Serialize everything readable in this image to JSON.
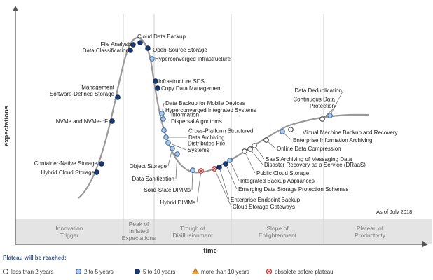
{
  "chart_data": {
    "type": "hype-cycle",
    "ylabel": "expectations",
    "xlabel": "time",
    "as_of": "As of July 2018",
    "phases": [
      "Innovation Trigger",
      "Peak of Inflated Expectations",
      "Trough of Disillusionment",
      "Slope of Enlightenment",
      "Plateau of Productivity"
    ],
    "legend": {
      "title": "Plateau will be reached:",
      "items": [
        {
          "key": "lt2",
          "label": "less than 2 years",
          "color": "#ffffff"
        },
        {
          "key": "2to5",
          "label": "2 to 5 years",
          "color": "#a9cde9"
        },
        {
          "key": "5to10",
          "label": "5 to 10 years",
          "color": "#1b3a75"
        },
        {
          "key": "gt10",
          "label": "more than 10 years",
          "color": "#f0a23b"
        },
        {
          "key": "obs",
          "label": "obsolete before plateau",
          "color": "#e05555"
        }
      ]
    },
    "technologies": [
      {
        "name": "Hybrid Cloud Storage",
        "category": "5to10",
        "phase": "Innovation Trigger"
      },
      {
        "name": "Container-Native Storage",
        "category": "5to10",
        "phase": "Innovation Trigger"
      },
      {
        "name": "NVMe and NVMe-oF",
        "category": "5to10",
        "phase": "Innovation Trigger"
      },
      {
        "name": "Management Software-Defined Storage",
        "category": "5to10",
        "phase": "Innovation Trigger"
      },
      {
        "name": "Data Classification",
        "category": "5to10",
        "phase": "Peak of Inflated Expectations"
      },
      {
        "name": "File Analysis",
        "category": "5to10",
        "phase": "Peak of Inflated Expectations"
      },
      {
        "name": "Cloud Data Backup",
        "category": "5to10",
        "phase": "Peak of Inflated Expectations"
      },
      {
        "name": "Open-Source Storage",
        "category": "5to10",
        "phase": "Peak of Inflated Expectations"
      },
      {
        "name": "Hyperconverged Infrastructure",
        "category": "2to5",
        "phase": "Peak of Inflated Expectations"
      },
      {
        "name": "Infrastructure SDS",
        "category": "5to10",
        "phase": "Trough of Disillusionment"
      },
      {
        "name": "Copy Data Management",
        "category": "5to10",
        "phase": "Trough of Disillusionment"
      },
      {
        "name": "Data Backup for Mobile Devices",
        "category": "2to5",
        "phase": "Trough of Disillusionment"
      },
      {
        "name": "Hyperconverged Integrated Systems",
        "category": "2to5",
        "phase": "Trough of Disillusionment"
      },
      {
        "name": "Information Dispersal Algorithms",
        "category": "2to5",
        "phase": "Trough of Disillusionment"
      },
      {
        "name": "Cross-Platform Structured Data Archiving",
        "category": "2to5",
        "phase": "Trough of Disillusionment"
      },
      {
        "name": "Distributed File Systems",
        "category": "2to5",
        "phase": "Trough of Disillusionment"
      },
      {
        "name": "Object Storage",
        "category": "2to5",
        "phase": "Trough of Disillusionment"
      },
      {
        "name": "Data Sanitization",
        "category": "2to5",
        "phase": "Trough of Disillusionment"
      },
      {
        "name": "Solid-State DIMMs",
        "category": "2to5",
        "phase": "Trough of Disillusionment"
      },
      {
        "name": "Hybrid DIMMs",
        "category": "obs",
        "phase": "Trough of Disillusionment"
      },
      {
        "name": "Cloud Storage Gateways",
        "category": "obs",
        "phase": "Trough of Disillusionment"
      },
      {
        "name": "Enterprise Endpoint Backup",
        "category": "5to10",
        "phase": "Trough of Disillusionment"
      },
      {
        "name": "Emerging Data Storage Protection Schemes",
        "category": "5to10",
        "phase": "Trough of Disillusionment"
      },
      {
        "name": "Integrated Backup Appliances",
        "category": "2to5",
        "phase": "Slope of Enlightenment"
      },
      {
        "name": "Public Cloud Storage",
        "category": "lt2",
        "phase": "Slope of Enlightenment"
      },
      {
        "name": "Disaster Recovery as a Service (DRaaS)",
        "category": "lt2",
        "phase": "Slope of Enlightenment"
      },
      {
        "name": "SaaS Archiving of Messaging Data",
        "category": "lt2",
        "phase": "Slope of Enlightenment"
      },
      {
        "name": "Online Data Compression",
        "category": "lt2",
        "phase": "Slope of Enlightenment"
      },
      {
        "name": "Enterprise Information Archiving",
        "category": "2to5",
        "phase": "Slope of Enlightenment"
      },
      {
        "name": "Virtual Machine Backup and Recovery",
        "category": "lt2",
        "phase": "Slope of Enlightenment"
      },
      {
        "name": "Continuous Data Protection",
        "category": "lt2",
        "phase": "Slope of Enlightenment"
      },
      {
        "name": "Data Deduplication",
        "category": "2to5",
        "phase": "Slope of Enlightenment"
      }
    ]
  }
}
